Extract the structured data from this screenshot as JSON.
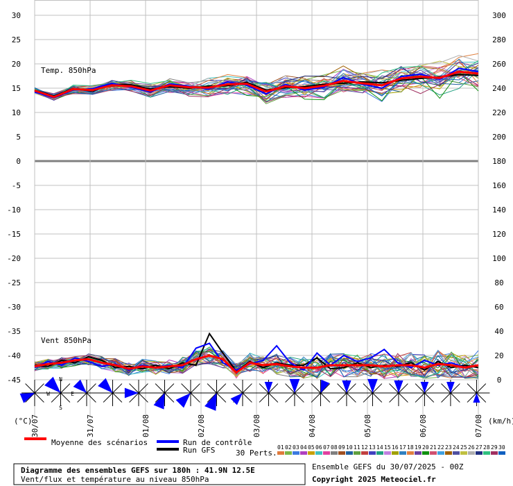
{
  "chart_data": {
    "type": "line",
    "x_dates": [
      "30/07",
      "31/07",
      "01/08",
      "02/08",
      "03/08",
      "04/08",
      "05/08",
      "06/08",
      "07/08"
    ],
    "left_axis": {
      "label": "(°C)",
      "ticks": [
        30,
        25,
        20,
        15,
        10,
        5,
        0,
        -5,
        -10,
        -15,
        -20,
        -25,
        -30,
        -35,
        -40,
        -45
      ],
      "range": [
        -45,
        30
      ]
    },
    "right_axis": {
      "label": "(km/h)",
      "ticks": [
        300,
        280,
        260,
        240,
        220,
        200,
        180,
        160,
        140,
        120,
        100,
        80,
        60,
        40,
        20,
        0
      ],
      "range": [
        0,
        300
      ]
    },
    "panels": {
      "temperature": {
        "label": "Temp. 850hPa"
      },
      "wind": {
        "label": "Vent 850hPa"
      }
    },
    "series": [
      {
        "name": "Moyenne des scénarios",
        "color": "#ff0000",
        "temp": [
          14.5,
          13.2,
          14.8,
          14.6,
          15.6,
          15.4,
          14.5,
          15.6,
          15.2,
          15.1,
          15.8,
          15.9,
          14.3,
          15.4,
          15.0,
          15.5,
          16.5,
          16.0,
          15.6,
          17.0,
          17.4,
          17.1,
          18.4,
          18.0
        ],
        "wind": [
          11,
          13,
          14,
          16,
          17,
          14,
          12,
          9,
          11,
          10,
          11,
          12,
          17,
          20,
          17,
          6,
          14,
          12,
          13,
          11,
          10,
          10,
          12,
          12,
          12,
          12,
          11,
          12,
          12,
          10,
          13,
          12,
          10,
          12
        ]
      },
      {
        "name": "Run de contrôle",
        "color": "#0000ff",
        "temp": [
          14.2,
          13.0,
          14.6,
          14.9,
          16.0,
          15.2,
          14.2,
          15.9,
          15.4,
          14.8,
          16.3,
          15.6,
          13.8,
          15.8,
          14.6,
          15.2,
          17.2,
          15.8,
          15.0,
          17.4,
          17.9,
          16.8,
          19.1,
          18.4
        ],
        "wind": [
          10,
          15,
          12,
          18,
          15,
          11,
          13,
          8,
          12,
          10,
          12,
          10,
          26,
          30,
          14,
          8,
          13,
          16,
          28,
          14,
          8,
          22,
          12,
          20,
          15,
          18,
          25,
          14,
          10,
          16,
          12,
          14,
          10,
          12
        ]
      },
      {
        "name": "Run GFS",
        "color": "#000000",
        "temp": [
          14.6,
          13.4,
          14.9,
          14.4,
          15.8,
          15.7,
          14.8,
          15.3,
          15.0,
          15.4,
          15.5,
          16.2,
          14.6,
          15.1,
          15.3,
          15.8,
          16.0,
          16.3,
          16.1,
          16.6,
          17.0,
          17.3,
          17.8,
          17.6
        ],
        "wind": [
          12,
          11,
          16,
          14,
          19,
          16,
          10,
          11,
          9,
          12,
          9,
          14,
          12,
          38,
          22,
          7,
          15,
          10,
          14,
          12,
          12,
          18,
          9,
          10,
          14,
          10,
          12,
          11,
          14,
          8,
          15,
          10,
          12,
          10
        ]
      }
    ],
    "ensemble_members": 30,
    "member_labels": [
      "01",
      "02",
      "03",
      "04",
      "05",
      "06",
      "07",
      "08",
      "09",
      "10",
      "11",
      "12",
      "13",
      "14",
      "15",
      "16",
      "17",
      "18",
      "19",
      "20",
      "21",
      "22",
      "23",
      "24",
      "25",
      "26",
      "27",
      "28",
      "29",
      "30"
    ],
    "member_colors": [
      "#e07a3c",
      "#7ab648",
      "#3c7ae0",
      "#b040c0",
      "#c8a000",
      "#40c0c0",
      "#e040a0",
      "#808080",
      "#a05020",
      "#2060a0",
      "#60a040",
      "#c04040",
      "#4040c0",
      "#20a080",
      "#c080e0",
      "#a0a000",
      "#3080c0",
      "#e08040",
      "#6a3fa0",
      "#109010",
      "#d05070",
      "#40a0e0",
      "#a06000",
      "#5050a0",
      "#c0c040",
      "#b0b0b0",
      "#203080",
      "#30c080",
      "#a03060",
      "#1060c0"
    ],
    "wind_roses": [
      {
        "dir": "WSW",
        "len": 0.7
      },
      {
        "dir": "NW",
        "len": 0.9
      },
      {
        "dir": "NW",
        "len": 0.7
      },
      {
        "dir": "NW",
        "len": 0.8
      },
      {
        "dir": "W",
        "len": 0.7
      },
      {
        "dir": "SSW",
        "len": 0.8
      },
      {
        "dir": "SW",
        "len": 0.8
      },
      {
        "dir": "SSW",
        "len": 0.9
      },
      {
        "dir": "SW",
        "len": 0.6
      },
      {
        "dir": "N",
        "len": 0.5
      },
      {
        "dir": "N",
        "len": 0.7
      },
      {
        "dir": "NNE",
        "len": 0.6
      },
      {
        "dir": "N",
        "len": 0.6
      },
      {
        "dir": "N",
        "len": 0.7
      },
      {
        "dir": "N",
        "len": 0.6
      },
      {
        "dir": "N",
        "len": 0.5
      },
      {
        "dir": "N",
        "len": 0.5
      },
      {
        "dir": "S",
        "len": 0.4
      }
    ],
    "compass": {
      "n": "N",
      "s": "S",
      "e": "E",
      "w": "W"
    }
  },
  "legend": {
    "mean_label": "Moyenne des scénarios",
    "control_label": "Run de contrôle",
    "gfs_label": "Run GFS",
    "perts_label": "30 Perts."
  },
  "footer": {
    "title": "Diagramme des ensembles GEFS sur 180h : 41.9N 12.5E",
    "subtitle": "Vent/flux et température au niveau 850hPa",
    "run": "Ensemble GEFS du 30/07/2025 - 00Z",
    "copyright": "Copyright 2025 Meteociel.fr"
  },
  "colors": {
    "mean": "#ff0000",
    "control": "#0000ff",
    "gfs": "#000000",
    "grid": "#c0c0c0",
    "rose": "#0000ff"
  }
}
